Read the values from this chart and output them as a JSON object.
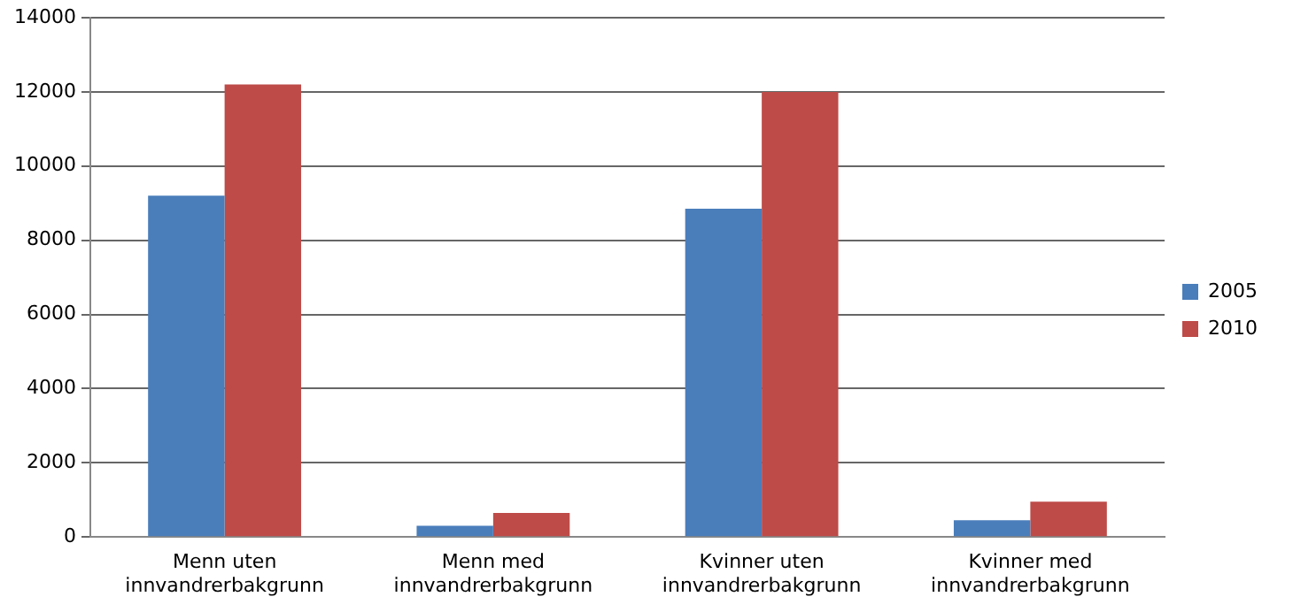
{
  "chart_data": {
    "type": "bar",
    "categories": [
      "Menn uten innvandrerbakgrunn",
      "Menn med innvandrerbakgrunn",
      "Kvinner uten innvandrerbakgrunn",
      "Kvinner med innvandrerbakgrunn"
    ],
    "series": [
      {
        "name": "2005",
        "color": "#4a7ebb",
        "values": [
          9200,
          300,
          8850,
          450
        ]
      },
      {
        "name": "2010",
        "color": "#be4b48",
        "values": [
          12200,
          650,
          12000,
          950
        ]
      }
    ],
    "ylim": [
      0,
      14000
    ],
    "yticks": [
      0,
      2000,
      4000,
      6000,
      8000,
      10000,
      12000,
      14000
    ],
    "grid": "y",
    "legend": "right"
  }
}
